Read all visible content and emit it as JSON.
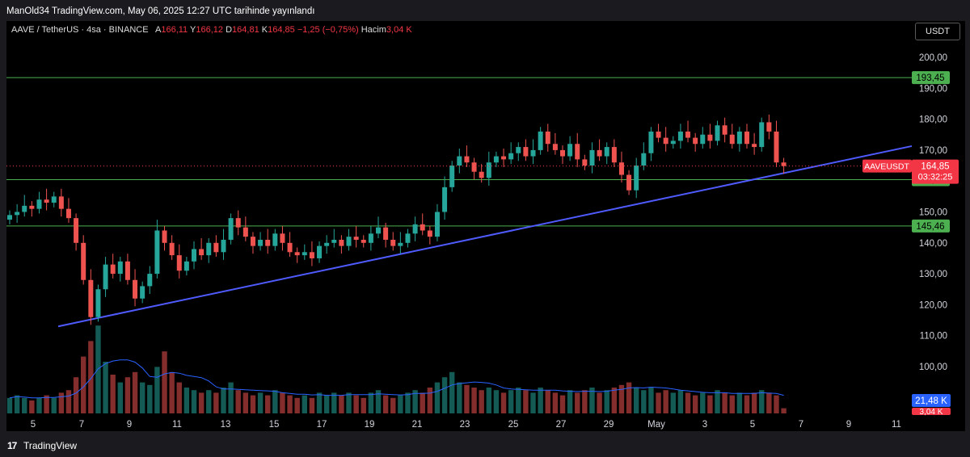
{
  "header": {
    "published": "ManOld34 TradingView.com, May 06, 2025 12:27 UTC tarihinde yayınlandı"
  },
  "legend": {
    "symbol": "AAVE / TetherUS · 4sa · BINANCE",
    "a_label": "A",
    "a_value": "166,11",
    "y_label": "Y",
    "y_value": "166,12",
    "d_label": "D",
    "d_value": "164,81",
    "k_label": "K",
    "k_value": "164,85",
    "change": "−1,25 (−0,75%)",
    "volume_label": "Hacim",
    "volume_value": "3,04 K"
  },
  "toolbar": {
    "currency_button": "USDT"
  },
  "footer": {
    "brand": "TradingView",
    "logo": "17"
  },
  "colors": {
    "up": "#26a69a",
    "down": "#ef5350",
    "hline": "#4caf50",
    "trend": "#4f5bff",
    "last": "#f23645",
    "vol_ma": "#2962ff"
  },
  "chart_data": {
    "type": "candlestick",
    "symbol": "AAVEUSDT",
    "ylim": [
      92,
      206
    ],
    "y_ticks": [
      "200,00",
      "190,00",
      "180,00",
      "170,00",
      "160,00",
      "150,00",
      "140,00",
      "130,00",
      "120,00",
      "110,00",
      "100,00"
    ],
    "y_tick_values": [
      200,
      190,
      180,
      170,
      160,
      150,
      140,
      130,
      120,
      110,
      100
    ],
    "x_ticks": [
      "5",
      "7",
      "9",
      "11",
      "13",
      "15",
      "17",
      "19",
      "21",
      "23",
      "25",
      "27",
      "29",
      "May",
      "3",
      "5",
      "7",
      "9",
      "11"
    ],
    "horizontal_levels": [
      {
        "value": 193.45,
        "label": "193,45"
      },
      {
        "value": 160.46,
        "label": "160,46"
      },
      {
        "value": 145.46,
        "label": "145,46"
      }
    ],
    "trendline": {
      "from": {
        "date": "Apr 6",
        "price": 113
      },
      "to": {
        "date": "May 6",
        "price": 171.3
      }
    },
    "last_price": {
      "symbol_label": "AAVEUSDT",
      "value": 164.85,
      "label": "164,85",
      "countdown": "03:32:25"
    },
    "volume_badges": {
      "ma_label": "21,48 K",
      "last_label": "3,04 K"
    },
    "closes": [
      149,
      150,
      152,
      151,
      154,
      153,
      155,
      151,
      148,
      140,
      128,
      116,
      125,
      133,
      130,
      134,
      128,
      122,
      126,
      130,
      144,
      140,
      136,
      131,
      134,
      138,
      136,
      140,
      137,
      141,
      148,
      145,
      142,
      139,
      141,
      139,
      143,
      140,
      137,
      136,
      137,
      135,
      139,
      140,
      141,
      139,
      142,
      141,
      140,
      143,
      145,
      141,
      139,
      140,
      143,
      146,
      144,
      142,
      150,
      158,
      165,
      168,
      166,
      163,
      161,
      166,
      168,
      167,
      169,
      171,
      168,
      170,
      176,
      172,
      170,
      168,
      172,
      167,
      165,
      170,
      168,
      171,
      166,
      162,
      157,
      165,
      169,
      176,
      174,
      172,
      173,
      176,
      174,
      172,
      175,
      173,
      178,
      175,
      172,
      176,
      172,
      171,
      179,
      176,
      166,
      164.85
    ],
    "volumes": [
      6,
      7,
      6,
      5,
      6,
      7,
      6,
      8,
      9,
      14,
      22,
      28,
      34,
      20,
      15,
      12,
      14,
      16,
      12,
      11,
      18,
      24,
      16,
      12,
      10,
      9,
      8,
      9,
      8,
      10,
      12,
      9,
      8,
      7,
      8,
      7,
      9,
      8,
      7,
      6,
      7,
      6,
      8,
      7,
      8,
      7,
      8,
      7,
      6,
      8,
      9,
      7,
      6,
      7,
      8,
      9,
      8,
      10,
      12,
      14,
      16,
      12,
      11,
      10,
      9,
      10,
      9,
      8,
      9,
      10,
      9,
      8,
      10,
      9,
      8,
      7,
      9,
      8,
      9,
      10,
      8,
      9,
      10,
      11,
      12,
      10,
      9,
      10,
      8,
      9,
      8,
      9,
      8,
      7,
      8,
      7,
      9,
      8,
      7,
      8,
      7,
      8,
      9,
      8,
      7,
      2
    ]
  }
}
